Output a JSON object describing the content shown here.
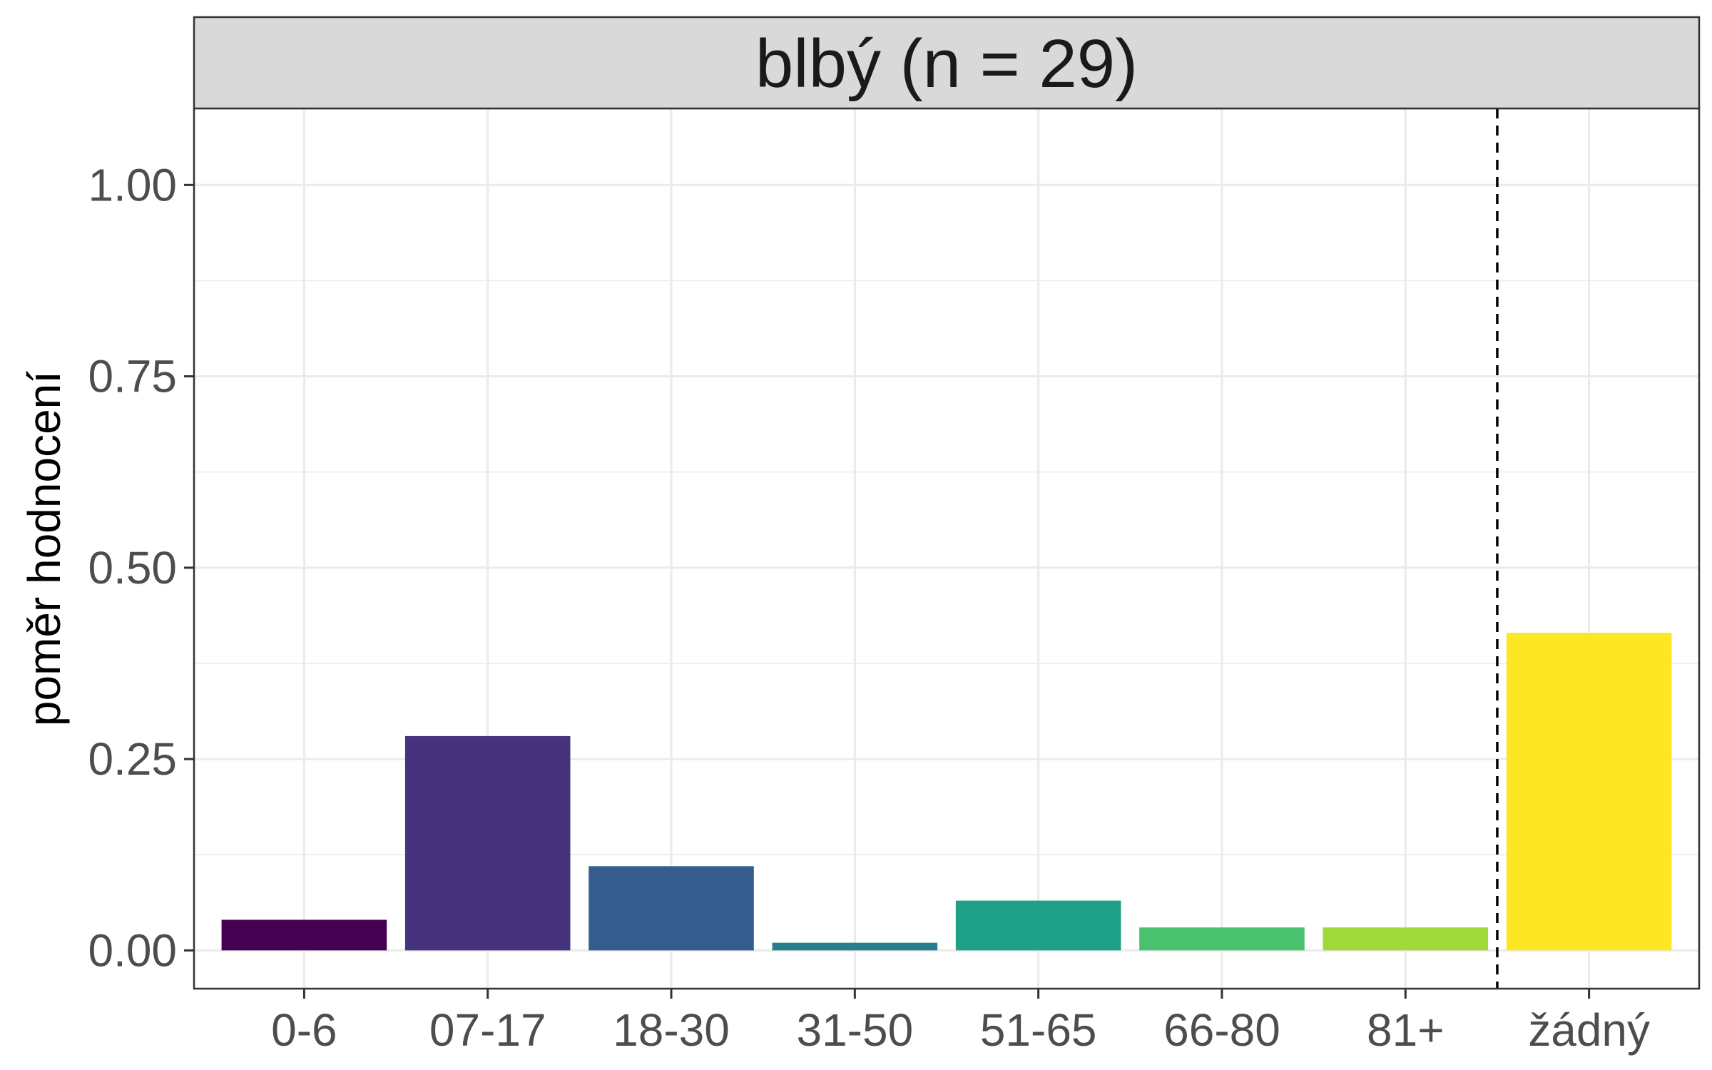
{
  "chart_data": {
    "type": "bar",
    "title": "blbý (n = 29)",
    "xlabel": "",
    "ylabel": "poměr hodnocení",
    "categories": [
      "0-6",
      "07-17",
      "18-30",
      "31-50",
      "51-65",
      "66-80",
      "81+",
      "žádný"
    ],
    "values": [
      0.04,
      0.28,
      0.11,
      0.01,
      0.065,
      0.03,
      0.03,
      0.415
    ],
    "colors": [
      "#440154",
      "#46337e",
      "#365c8d",
      "#277f8e",
      "#1fa187",
      "#4ac16d",
      "#9fda3a",
      "#fde725"
    ],
    "ylim": [
      -0.05,
      1.1
    ],
    "yticks": [
      "0.00",
      "0.25",
      "0.50",
      "0.75",
      "1.00"
    ],
    "grid": true,
    "legend": "none",
    "reference_line": {
      "between": [
        "81+",
        "žádný"
      ],
      "style": "dashed"
    }
  }
}
